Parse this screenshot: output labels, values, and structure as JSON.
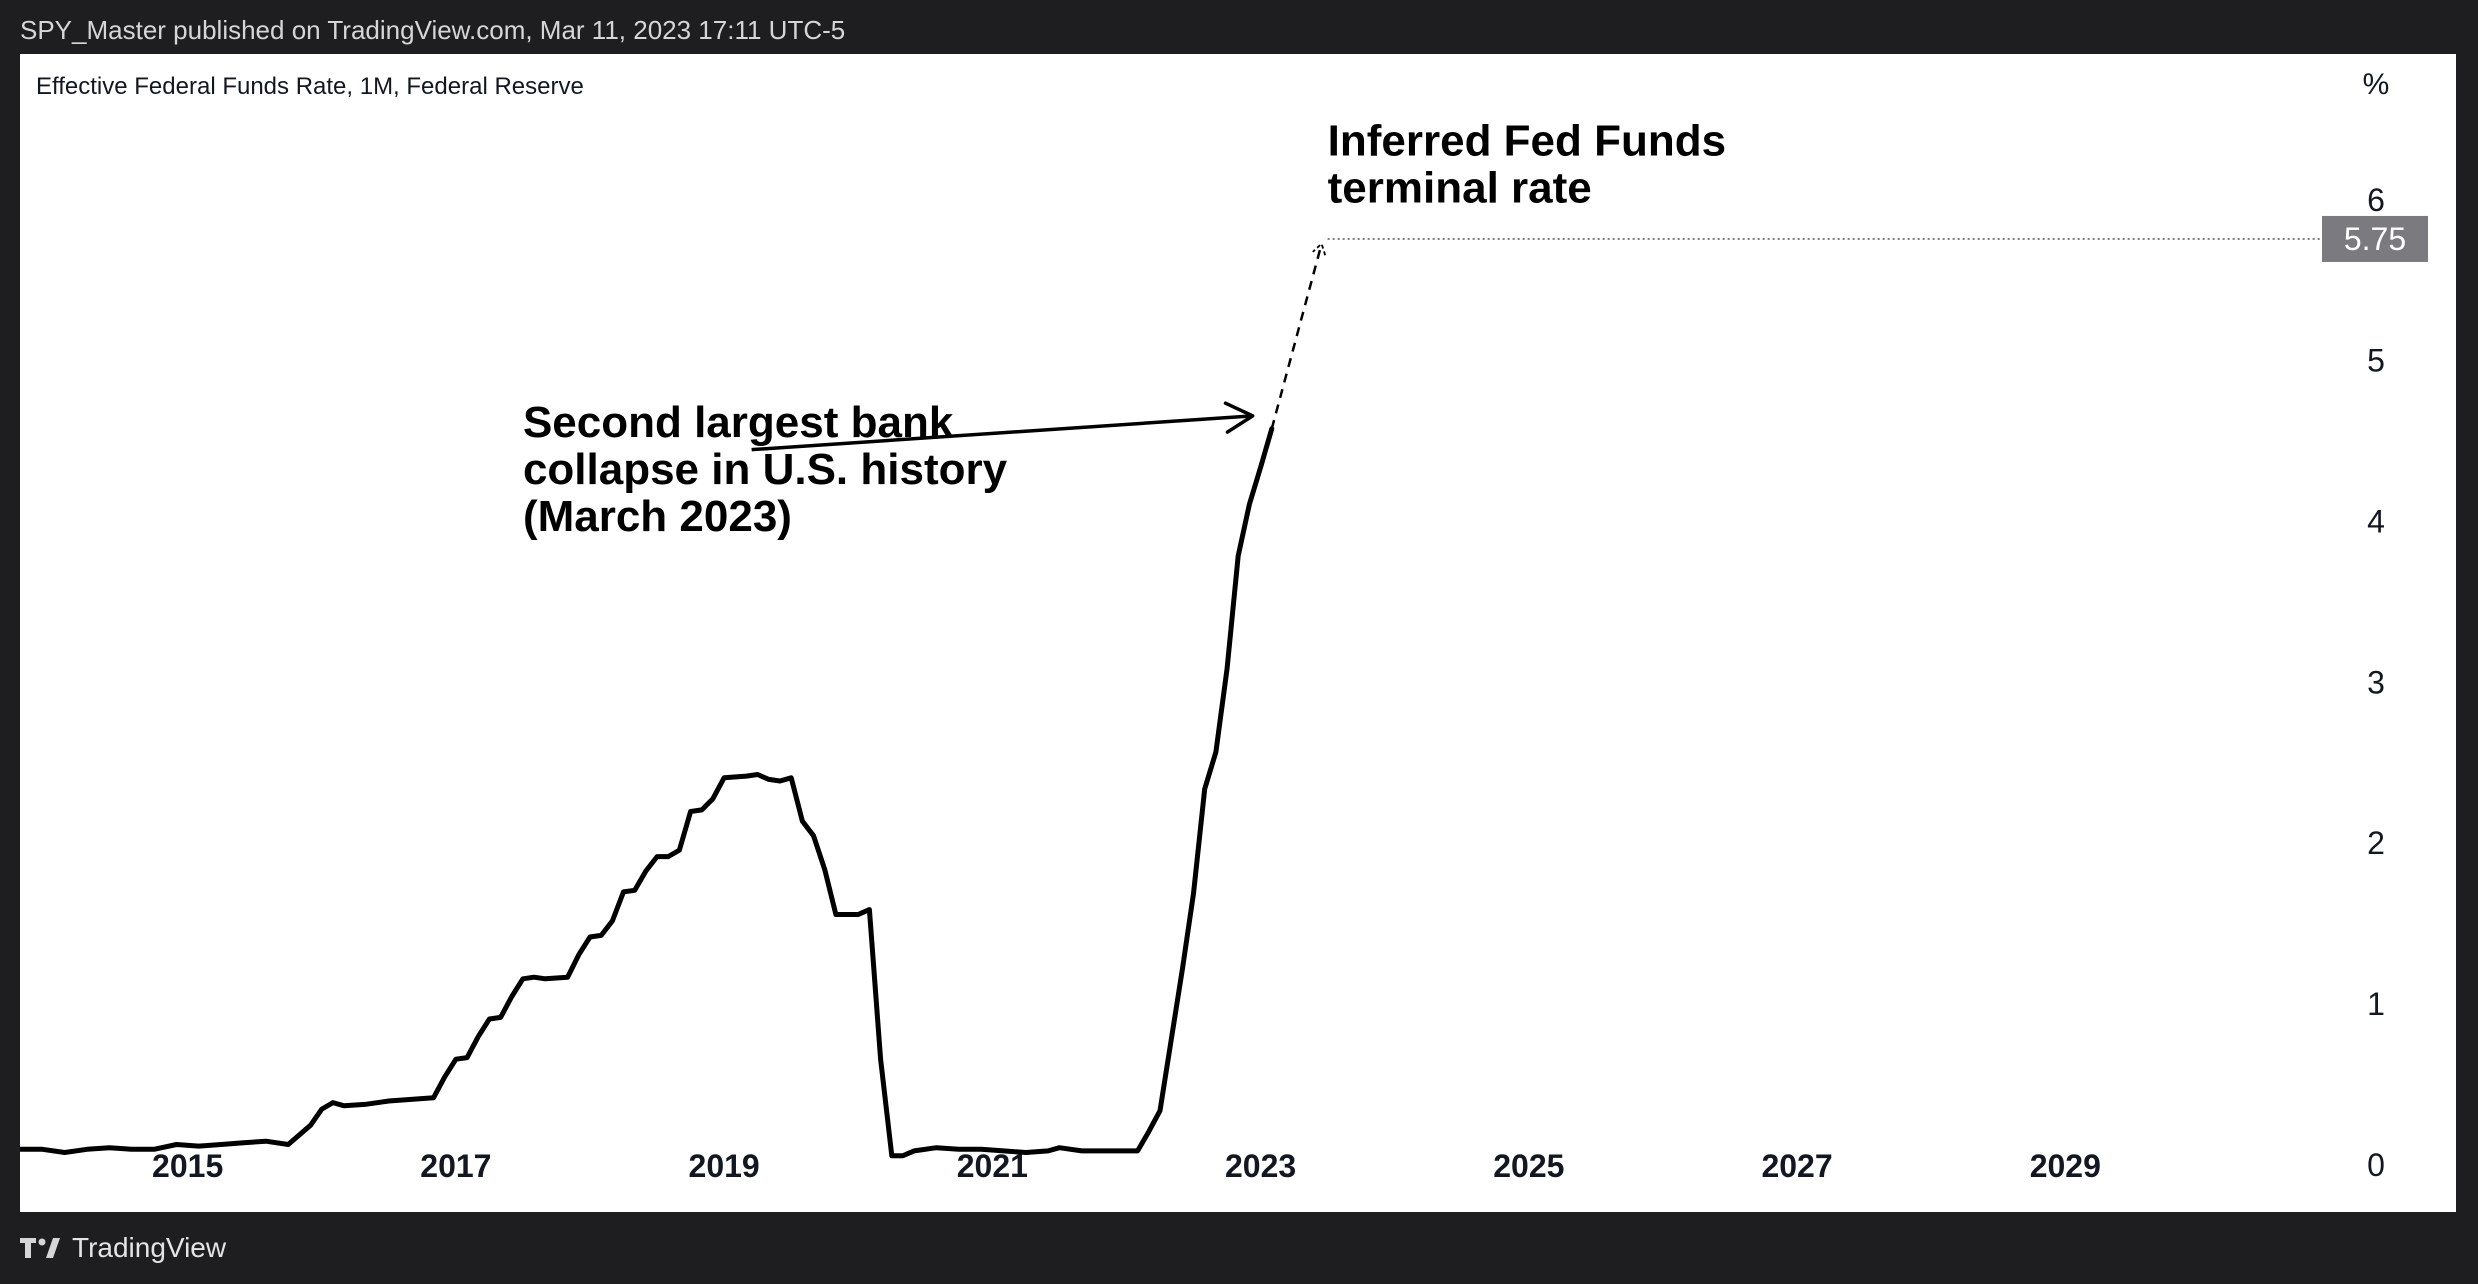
{
  "header": {
    "published_by": "SPY_Master published on TradingView.com, Mar 11, 2023 17:11 UTC-5"
  },
  "footer": {
    "brand_icon": "tradingview-logo-icon",
    "brand_label": "TradingView"
  },
  "colors": {
    "line": "#000000",
    "price_tag_bg": "#7a7a7f",
    "price_tag_text": "#ffffff",
    "axis_text": "#131722"
  },
  "chart_data": {
    "type": "line",
    "title": "Effective Federal Funds Rate, 1M, Federal Reserve",
    "ylabel": "%",
    "xlim": [
      "2013-10-01",
      "2030-10-01"
    ],
    "ylim": [
      -0.3,
      6.9
    ],
    "y_ticks": [
      0,
      1,
      2,
      3,
      4,
      5,
      6
    ],
    "x_ticks": [
      "2015",
      "2017",
      "2019",
      "2021",
      "2023",
      "2025",
      "2027",
      "2029"
    ],
    "grid": false,
    "series": [
      {
        "values": [
          [
            "2013-10-01",
            0.09
          ],
          [
            "2013-12-01",
            0.09
          ],
          [
            "2014-02-01",
            0.07
          ],
          [
            "2014-04-01",
            0.09
          ],
          [
            "2014-06-01",
            0.1
          ],
          [
            "2014-08-01",
            0.09
          ],
          [
            "2014-10-01",
            0.09
          ],
          [
            "2014-12-01",
            0.12
          ],
          [
            "2015-02-01",
            0.11
          ],
          [
            "2015-04-01",
            0.12
          ],
          [
            "2015-06-01",
            0.13
          ],
          [
            "2015-08-01",
            0.14
          ],
          [
            "2015-10-01",
            0.12
          ],
          [
            "2015-12-01",
            0.24
          ],
          [
            "2016-01-01",
            0.34
          ],
          [
            "2016-02-01",
            0.38
          ],
          [
            "2016-03-01",
            0.36
          ],
          [
            "2016-05-01",
            0.37
          ],
          [
            "2016-07-01",
            0.39
          ],
          [
            "2016-09-01",
            0.4
          ],
          [
            "2016-11-01",
            0.41
          ],
          [
            "2016-12-01",
            0.54
          ],
          [
            "2017-01-01",
            0.65
          ],
          [
            "2017-02-01",
            0.66
          ],
          [
            "2017-03-01",
            0.79
          ],
          [
            "2017-04-01",
            0.9
          ],
          [
            "2017-05-01",
            0.91
          ],
          [
            "2017-06-01",
            1.04
          ],
          [
            "2017-07-01",
            1.15
          ],
          [
            "2017-08-01",
            1.16
          ],
          [
            "2017-09-01",
            1.15
          ],
          [
            "2017-11-01",
            1.16
          ],
          [
            "2017-12-01",
            1.3
          ],
          [
            "2018-01-01",
            1.41
          ],
          [
            "2018-02-01",
            1.42
          ],
          [
            "2018-03-01",
            1.51
          ],
          [
            "2018-04-01",
            1.69
          ],
          [
            "2018-05-01",
            1.7
          ],
          [
            "2018-06-01",
            1.82
          ],
          [
            "2018-07-01",
            1.91
          ],
          [
            "2018-08-01",
            1.91
          ],
          [
            "2018-09-01",
            1.95
          ],
          [
            "2018-10-01",
            2.19
          ],
          [
            "2018-11-01",
            2.2
          ],
          [
            "2018-12-01",
            2.27
          ],
          [
            "2019-01-01",
            2.4
          ],
          [
            "2019-03-01",
            2.41
          ],
          [
            "2019-04-01",
            2.42
          ],
          [
            "2019-05-01",
            2.39
          ],
          [
            "2019-06-01",
            2.38
          ],
          [
            "2019-07-01",
            2.4
          ],
          [
            "2019-08-01",
            2.13
          ],
          [
            "2019-09-01",
            2.04
          ],
          [
            "2019-10-01",
            1.83
          ],
          [
            "2019-11-01",
            1.55
          ],
          [
            "2019-12-01",
            1.55
          ],
          [
            "2020-01-01",
            1.55
          ],
          [
            "2020-02-01",
            1.58
          ],
          [
            "2020-03-01",
            0.65
          ],
          [
            "2020-04-01",
            0.05
          ],
          [
            "2020-05-01",
            0.05
          ],
          [
            "2020-06-01",
            0.08
          ],
          [
            "2020-08-01",
            0.1
          ],
          [
            "2020-10-01",
            0.09
          ],
          [
            "2020-12-01",
            0.09
          ],
          [
            "2021-02-01",
            0.08
          ],
          [
            "2021-04-01",
            0.07
          ],
          [
            "2021-06-01",
            0.08
          ],
          [
            "2021-07-01",
            0.1
          ],
          [
            "2021-09-01",
            0.08
          ],
          [
            "2021-11-01",
            0.08
          ],
          [
            "2022-02-01",
            0.08
          ],
          [
            "2022-03-01",
            0.2
          ],
          [
            "2022-04-01",
            0.33
          ],
          [
            "2022-05-01",
            0.77
          ],
          [
            "2022-06-01",
            1.21
          ],
          [
            "2022-07-01",
            1.68
          ],
          [
            "2022-08-01",
            2.33
          ],
          [
            "2022-09-01",
            2.56
          ],
          [
            "2022-10-01",
            3.08
          ],
          [
            "2022-11-01",
            3.78
          ],
          [
            "2022-12-01",
            4.1
          ],
          [
            "2023-01-01",
            4.33
          ],
          [
            "2023-02-01",
            4.57
          ]
        ]
      }
    ],
    "projection": {
      "style": "dashed-arrow",
      "from": [
        "2023-02-01",
        4.57
      ],
      "to": [
        "2023-06-15",
        5.72
      ]
    },
    "terminal_level": {
      "value": 5.75,
      "label": "5.75",
      "line_start": "2023-07-01"
    },
    "annotations": [
      {
        "lines": [
          "Second largest bank",
          "collapse in U.S. history",
          "(March 2023)"
        ],
        "text_anchor": [
          "2017-07-01",
          4.52
        ],
        "arrow_from": [
          "2019-03-15",
          4.44
        ],
        "arrow_to": [
          "2022-12-10",
          4.65
        ]
      },
      {
        "lines": [
          "Inferred Fed Funds",
          "terminal rate"
        ],
        "text_anchor": [
          "2023-07-01",
          6.27
        ]
      }
    ]
  }
}
